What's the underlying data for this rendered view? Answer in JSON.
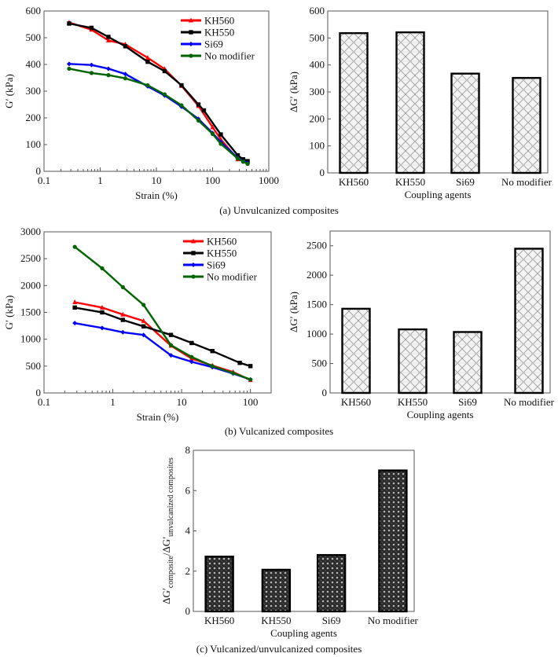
{
  "figure": {
    "captions": {
      "a": "(a) Unvulcanized composites",
      "b": "(b) Vulcanized composites",
      "c": "(c) Vulcanized/unvulcanized composites"
    }
  },
  "colors": {
    "KH560": "#ff0000",
    "KH550": "#000000",
    "Si69": "#0000ff",
    "No modifier": "#006400"
  },
  "chart_data": [
    {
      "id": "a-left",
      "type": "line",
      "title": "",
      "xlabel": "Strain (%)",
      "ylabel": "G′ (kPa)",
      "xscale": "log",
      "xlim": [
        0.1,
        1000
      ],
      "ylim": [
        0,
        600
      ],
      "xticks": [
        0.1,
        1,
        10,
        100,
        1000
      ],
      "xtick_labels": [
        "0.1",
        "1",
        "10",
        "100",
        "1000"
      ],
      "yticks": [
        0,
        100,
        200,
        300,
        400,
        500,
        600
      ],
      "ytick_labels": [
        "0",
        "100",
        "200",
        "300",
        "400",
        "500",
        "600"
      ],
      "grid": false,
      "legend": "top-right",
      "series": [
        {
          "name": "KH560",
          "marker": "triangle",
          "x": [
            0.28,
            0.7,
            1.4,
            2.8,
            7,
            14,
            28,
            56,
            100,
            140,
            280,
            420
          ],
          "y": [
            557,
            530,
            490,
            475,
            425,
            383,
            320,
            245,
            165,
            120,
            45,
            35
          ]
        },
        {
          "name": "KH550",
          "marker": "square",
          "x": [
            0.28,
            0.7,
            1.4,
            2.8,
            7,
            14,
            28,
            56,
            70,
            140,
            280,
            350,
            420
          ],
          "y": [
            553,
            537,
            503,
            468,
            410,
            375,
            322,
            250,
            228,
            138,
            60,
            45,
            38
          ]
        },
        {
          "name": "Si69",
          "marker": "diamond",
          "x": [
            0.28,
            0.7,
            1.4,
            2.8,
            7,
            14,
            28,
            56,
            100,
            140,
            280,
            420
          ],
          "y": [
            402,
            398,
            384,
            364,
            318,
            284,
            242,
            196,
            143,
            110,
            50,
            30
          ]
        },
        {
          "name": "No modifier",
          "marker": "circle",
          "x": [
            0.28,
            0.7,
            1.4,
            2.8,
            7,
            14,
            28,
            56,
            100,
            140,
            280,
            350,
            420
          ],
          "y": [
            384,
            368,
            360,
            348,
            322,
            288,
            247,
            190,
            140,
            103,
            48,
            36,
            28
          ]
        }
      ]
    },
    {
      "id": "a-right",
      "type": "bar",
      "title": "",
      "xlabel": "Coupling agents",
      "ylabel": "ΔG′ (kPa)",
      "categories": [
        "KH560",
        "KH550",
        "Si69",
        "No modifier"
      ],
      "values": [
        518,
        521,
        368,
        352
      ],
      "ylim": [
        0,
        600
      ],
      "yticks": [
        0,
        100,
        200,
        300,
        400,
        500,
        600
      ],
      "ytick_labels": [
        "0",
        "100",
        "200",
        "300",
        "400",
        "500",
        "600"
      ],
      "fill": "light crosshatch"
    },
    {
      "id": "b-left",
      "type": "line",
      "title": "",
      "xlabel": "Strain (%)",
      "ylabel": "G′ (kPa)",
      "xscale": "log",
      "xlim": [
        0.1,
        200
      ],
      "ylim": [
        0,
        3000
      ],
      "xticks": [
        0.1,
        1,
        10,
        100
      ],
      "xtick_labels": [
        "0.1",
        "1",
        "10",
        "100"
      ],
      "yticks": [
        0,
        500,
        1000,
        1500,
        2000,
        2500,
        3000
      ],
      "ytick_labels": [
        "0",
        "500",
        "1000",
        "1500",
        "2000",
        "2500",
        "3000"
      ],
      "grid": false,
      "legend": "top-right",
      "series": [
        {
          "name": "KH560",
          "marker": "triangle",
          "x": [
            0.28,
            0.7,
            1.4,
            2.8,
            7,
            14,
            28,
            56,
            100
          ],
          "y": [
            1690,
            1590,
            1460,
            1340,
            880,
            640,
            510,
            390,
            240
          ]
        },
        {
          "name": "KH550",
          "marker": "square",
          "x": [
            0.28,
            0.7,
            1.4,
            2.8,
            7,
            14,
            28,
            70,
            100
          ],
          "y": [
            1590,
            1500,
            1360,
            1240,
            1080,
            930,
            780,
            560,
            500
          ]
        },
        {
          "name": "Si69",
          "marker": "diamond",
          "x": [
            0.28,
            0.7,
            1.4,
            2.8,
            7,
            14,
            28,
            56,
            100
          ],
          "y": [
            1300,
            1210,
            1130,
            1080,
            700,
            580,
            480,
            360,
            250
          ]
        },
        {
          "name": "No modifier",
          "marker": "circle",
          "x": [
            0.28,
            0.7,
            1.4,
            2.8,
            7,
            14,
            28,
            56,
            100
          ],
          "y": [
            2720,
            2320,
            1970,
            1640,
            890,
            670,
            500,
            370,
            250
          ]
        }
      ]
    },
    {
      "id": "b-right",
      "type": "bar",
      "title": "",
      "xlabel": "Coupling agents",
      "ylabel": "ΔG′ (kPa)",
      "categories": [
        "KH560",
        "KH550",
        "Si69",
        "No modifier"
      ],
      "values": [
        1430,
        1080,
        1035,
        2450
      ],
      "ylim": [
        0,
        2750
      ],
      "yticks": [
        0,
        500,
        1000,
        1500,
        2000,
        2500
      ],
      "ytick_labels": [
        "0",
        "500",
        "1000",
        "1500",
        "2000",
        "2500"
      ],
      "fill": "light crosshatch"
    },
    {
      "id": "c",
      "type": "bar",
      "title": "",
      "xlabel": "Coupling agents",
      "ylabel_parts": {
        "main1": "ΔG′",
        "sub1": "composite",
        "sep": "/ΔG′",
        "sub2": "unvulcanized composites"
      },
      "categories": [
        "KH560",
        "KH550",
        "Si69",
        "No modifier"
      ],
      "values": [
        2.72,
        2.07,
        2.8,
        7.0
      ],
      "ylim": [
        0,
        8
      ],
      "yticks": [
        0,
        2,
        4,
        6,
        8
      ],
      "ytick_labels": [
        "0",
        "2",
        "4",
        "6",
        "8"
      ],
      "fill": "dark dotted"
    }
  ]
}
